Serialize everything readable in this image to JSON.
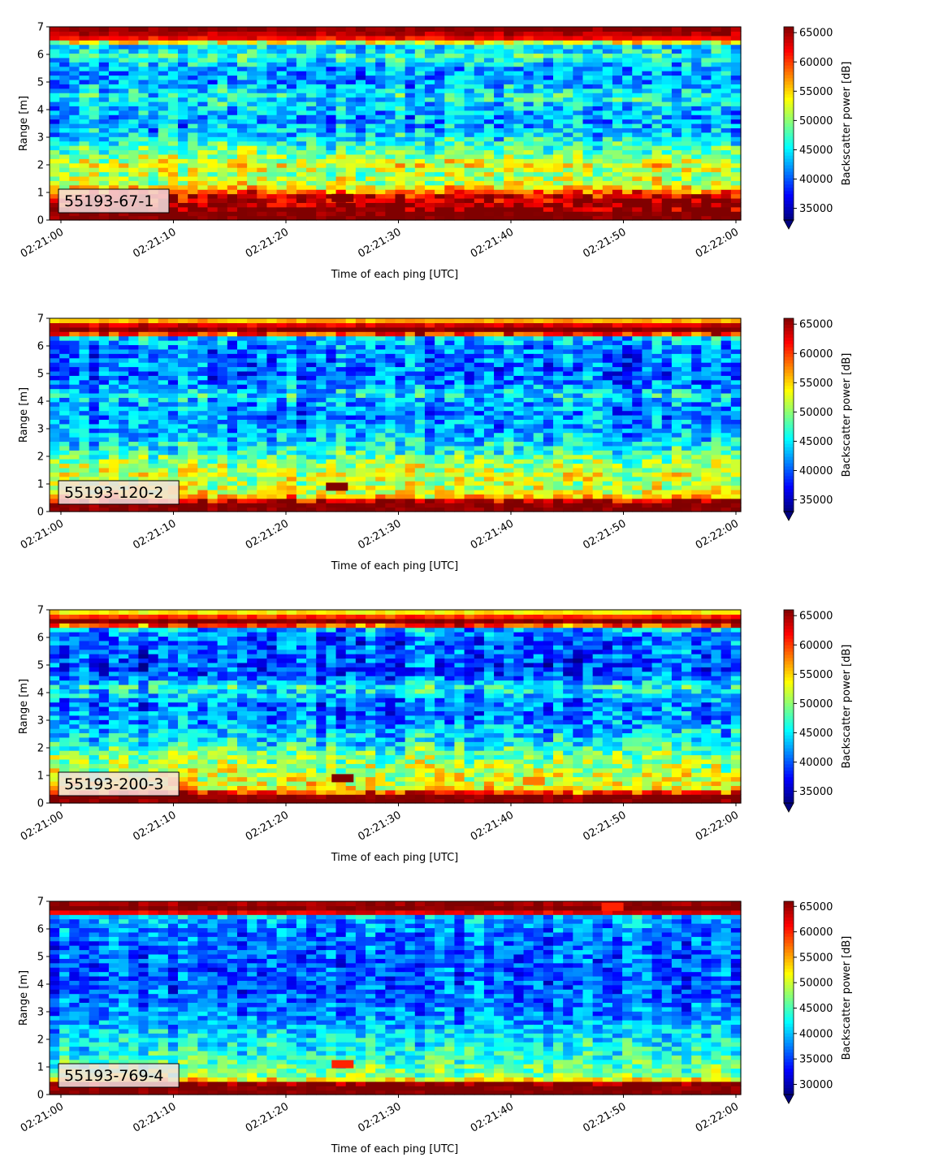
{
  "chart_data": [
    {
      "type": "heatmap",
      "label": "55193-67-1",
      "xlabel": "Time of each ping [UTC]",
      "ylabel": "Range [m]",
      "colorbar_label": "Backscatter power [dB]",
      "colormap": "jet",
      "x_range": [
        "02:21:00",
        "02:22:00"
      ],
      "ylim": [
        0,
        7
      ],
      "yticks": [
        "0",
        "1",
        "2",
        "3",
        "4",
        "5",
        "6",
        "7"
      ],
      "xticks": [
        "02:21:00",
        "02:21:10",
        "02:21:20",
        "02:21:30",
        "02:21:40",
        "02:21:50",
        "02:22:00"
      ],
      "clim": [
        33000,
        66000
      ],
      "cbar_ticks": [
        "35000",
        "40000",
        "45000",
        "50000",
        "55000",
        "60000",
        "65000"
      ],
      "cbar_tick_values": [
        35000,
        40000,
        45000,
        50000,
        55000,
        60000,
        65000
      ],
      "cbar_extend": "min",
      "profile": [
        {
          "range": 0.1,
          "power": 66000
        },
        {
          "range": 0.35,
          "power": 66000
        },
        {
          "range": 0.6,
          "power": 65000
        },
        {
          "range": 0.9,
          "power": 63000
        },
        {
          "range": 1.1,
          "power": 57000
        },
        {
          "range": 1.3,
          "power": 52000
        },
        {
          "range": 1.7,
          "power": 51000
        },
        {
          "range": 2.0,
          "power": 53000
        },
        {
          "range": 2.3,
          "power": 50000
        },
        {
          "range": 2.7,
          "power": 47000
        },
        {
          "range": 3.1,
          "power": 44000
        },
        {
          "range": 3.5,
          "power": 42000
        },
        {
          "range": 4.0,
          "power": 43000
        },
        {
          "range": 4.5,
          "power": 46000
        },
        {
          "range": 5.0,
          "power": 42000
        },
        {
          "range": 5.5,
          "power": 42000
        },
        {
          "range": 5.9,
          "power": 47000
        },
        {
          "range": 6.3,
          "power": 44000
        },
        {
          "range": 6.6,
          "power": 62000
        },
        {
          "range": 6.9,
          "power": 66000
        }
      ],
      "features": [
        {
          "t": 25,
          "r": 0.8,
          "power": 66000
        }
      ]
    },
    {
      "type": "heatmap",
      "label": "55193-120-2",
      "xlabel": "Time of each ping [UTC]",
      "ylabel": "Range [m]",
      "colorbar_label": "Backscatter power [dB]",
      "colormap": "jet",
      "x_range": [
        "02:21:00",
        "02:22:00"
      ],
      "ylim": [
        0,
        7
      ],
      "yticks": [
        "0",
        "1",
        "2",
        "3",
        "4",
        "5",
        "6",
        "7"
      ],
      "xticks": [
        "02:21:00",
        "02:21:10",
        "02:21:20",
        "02:21:30",
        "02:21:40",
        "02:21:50",
        "02:22:00"
      ],
      "clim": [
        33000,
        66000
      ],
      "cbar_ticks": [
        "35000",
        "40000",
        "45000",
        "50000",
        "55000",
        "60000",
        "65000"
      ],
      "cbar_tick_values": [
        35000,
        40000,
        45000,
        50000,
        55000,
        60000,
        65000
      ],
      "cbar_extend": "min",
      "profile": [
        {
          "range": 0.1,
          "power": 66000
        },
        {
          "range": 0.35,
          "power": 66000
        },
        {
          "range": 0.6,
          "power": 53000
        },
        {
          "range": 1.0,
          "power": 51000
        },
        {
          "range": 1.4,
          "power": 52000
        },
        {
          "range": 1.8,
          "power": 50000
        },
        {
          "range": 2.2,
          "power": 46000
        },
        {
          "range": 2.6,
          "power": 44000
        },
        {
          "range": 3.0,
          "power": 42000
        },
        {
          "range": 3.5,
          "power": 41000
        },
        {
          "range": 4.0,
          "power": 42000
        },
        {
          "range": 4.2,
          "power": 45000
        },
        {
          "range": 4.6,
          "power": 41000
        },
        {
          "range": 5.0,
          "power": 40000
        },
        {
          "range": 5.5,
          "power": 41000
        },
        {
          "range": 6.0,
          "power": 41000
        },
        {
          "range": 6.3,
          "power": 44000
        },
        {
          "range": 6.5,
          "power": 66000
        },
        {
          "range": 6.7,
          "power": 66000
        },
        {
          "range": 6.9,
          "power": 56000
        }
      ],
      "features": [
        {
          "t": 24.5,
          "r": 0.9,
          "power": 66000
        }
      ]
    },
    {
      "type": "heatmap",
      "label": "55193-200-3",
      "xlabel": "Time of each ping [UTC]",
      "ylabel": "Range [m]",
      "colorbar_label": "Backscatter power [dB]",
      "colormap": "jet",
      "x_range": [
        "02:21:00",
        "02:22:00"
      ],
      "ylim": [
        0,
        7
      ],
      "yticks": [
        "0",
        "1",
        "2",
        "3",
        "4",
        "5",
        "6",
        "7"
      ],
      "xticks": [
        "02:21:00",
        "02:21:10",
        "02:21:20",
        "02:21:30",
        "02:21:40",
        "02:21:50",
        "02:22:00"
      ],
      "clim": [
        33000,
        66000
      ],
      "cbar_ticks": [
        "35000",
        "40000",
        "45000",
        "50000",
        "55000",
        "60000",
        "65000"
      ],
      "cbar_tick_values": [
        35000,
        40000,
        45000,
        50000,
        55000,
        60000,
        65000
      ],
      "cbar_extend": "min",
      "profile": [
        {
          "range": 0.1,
          "power": 66000
        },
        {
          "range": 0.3,
          "power": 66000
        },
        {
          "range": 0.5,
          "power": 54000
        },
        {
          "range": 0.9,
          "power": 52000
        },
        {
          "range": 1.3,
          "power": 51000
        },
        {
          "range": 1.8,
          "power": 49000
        },
        {
          "range": 2.2,
          "power": 45000
        },
        {
          "range": 2.7,
          "power": 43000
        },
        {
          "range": 3.2,
          "power": 41000
        },
        {
          "range": 3.7,
          "power": 41000
        },
        {
          "range": 4.2,
          "power": 46000
        },
        {
          "range": 4.6,
          "power": 40000
        },
        {
          "range": 5.0,
          "power": 39000
        },
        {
          "range": 5.5,
          "power": 40000
        },
        {
          "range": 6.0,
          "power": 40000
        },
        {
          "range": 6.3,
          "power": 43000
        },
        {
          "range": 6.5,
          "power": 66000
        },
        {
          "range": 6.65,
          "power": 66000
        },
        {
          "range": 6.85,
          "power": 56000
        },
        {
          "range": 7.0,
          "power": 52000
        }
      ],
      "features": [
        {
          "t": 25,
          "r": 0.9,
          "power": 66000
        },
        {
          "t": 42,
          "r": 0.8,
          "power": 58000
        }
      ]
    },
    {
      "type": "heatmap",
      "label": "55193-769-4",
      "xlabel": "Time of each ping [UTC]",
      "ylabel": "Range [m]",
      "colorbar_label": "Backscatter power [dB]",
      "colormap": "jet",
      "x_range": [
        "02:21:00",
        "02:22:00"
      ],
      "ylim": [
        0,
        7
      ],
      "yticks": [
        "0",
        "1",
        "2",
        "3",
        "4",
        "5",
        "6",
        "7"
      ],
      "xticks": [
        "02:21:00",
        "02:21:10",
        "02:21:20",
        "02:21:30",
        "02:21:40",
        "02:21:50",
        "02:22:00"
      ],
      "clim": [
        28000,
        66000
      ],
      "cbar_ticks": [
        "30000",
        "35000",
        "40000",
        "45000",
        "50000",
        "55000",
        "60000",
        "65000"
      ],
      "cbar_tick_values": [
        30000,
        35000,
        40000,
        45000,
        50000,
        55000,
        60000,
        65000
      ],
      "cbar_extend": "min",
      "profile": [
        {
          "range": 0.1,
          "power": 66000
        },
        {
          "range": 0.4,
          "power": 66000
        },
        {
          "range": 0.6,
          "power": 48000
        },
        {
          "range": 0.9,
          "power": 46000
        },
        {
          "range": 1.3,
          "power": 44000
        },
        {
          "range": 1.8,
          "power": 42000
        },
        {
          "range": 2.3,
          "power": 40000
        },
        {
          "range": 2.8,
          "power": 38000
        },
        {
          "range": 3.3,
          "power": 37000
        },
        {
          "range": 3.8,
          "power": 36000
        },
        {
          "range": 4.3,
          "power": 36000
        },
        {
          "range": 4.8,
          "power": 36000
        },
        {
          "range": 5.3,
          "power": 36000
        },
        {
          "range": 5.8,
          "power": 37000
        },
        {
          "range": 6.2,
          "power": 38000
        },
        {
          "range": 6.45,
          "power": 40000
        },
        {
          "range": 6.55,
          "power": 60000
        },
        {
          "range": 6.7,
          "power": 66000
        },
        {
          "range": 6.9,
          "power": 66000
        },
        {
          "range": 7.0,
          "power": 62000
        }
      ],
      "features": [
        {
          "t": 25,
          "r": 1.1,
          "power": 60000
        },
        {
          "t": 49,
          "r": 6.8,
          "power": 60000
        }
      ]
    }
  ]
}
